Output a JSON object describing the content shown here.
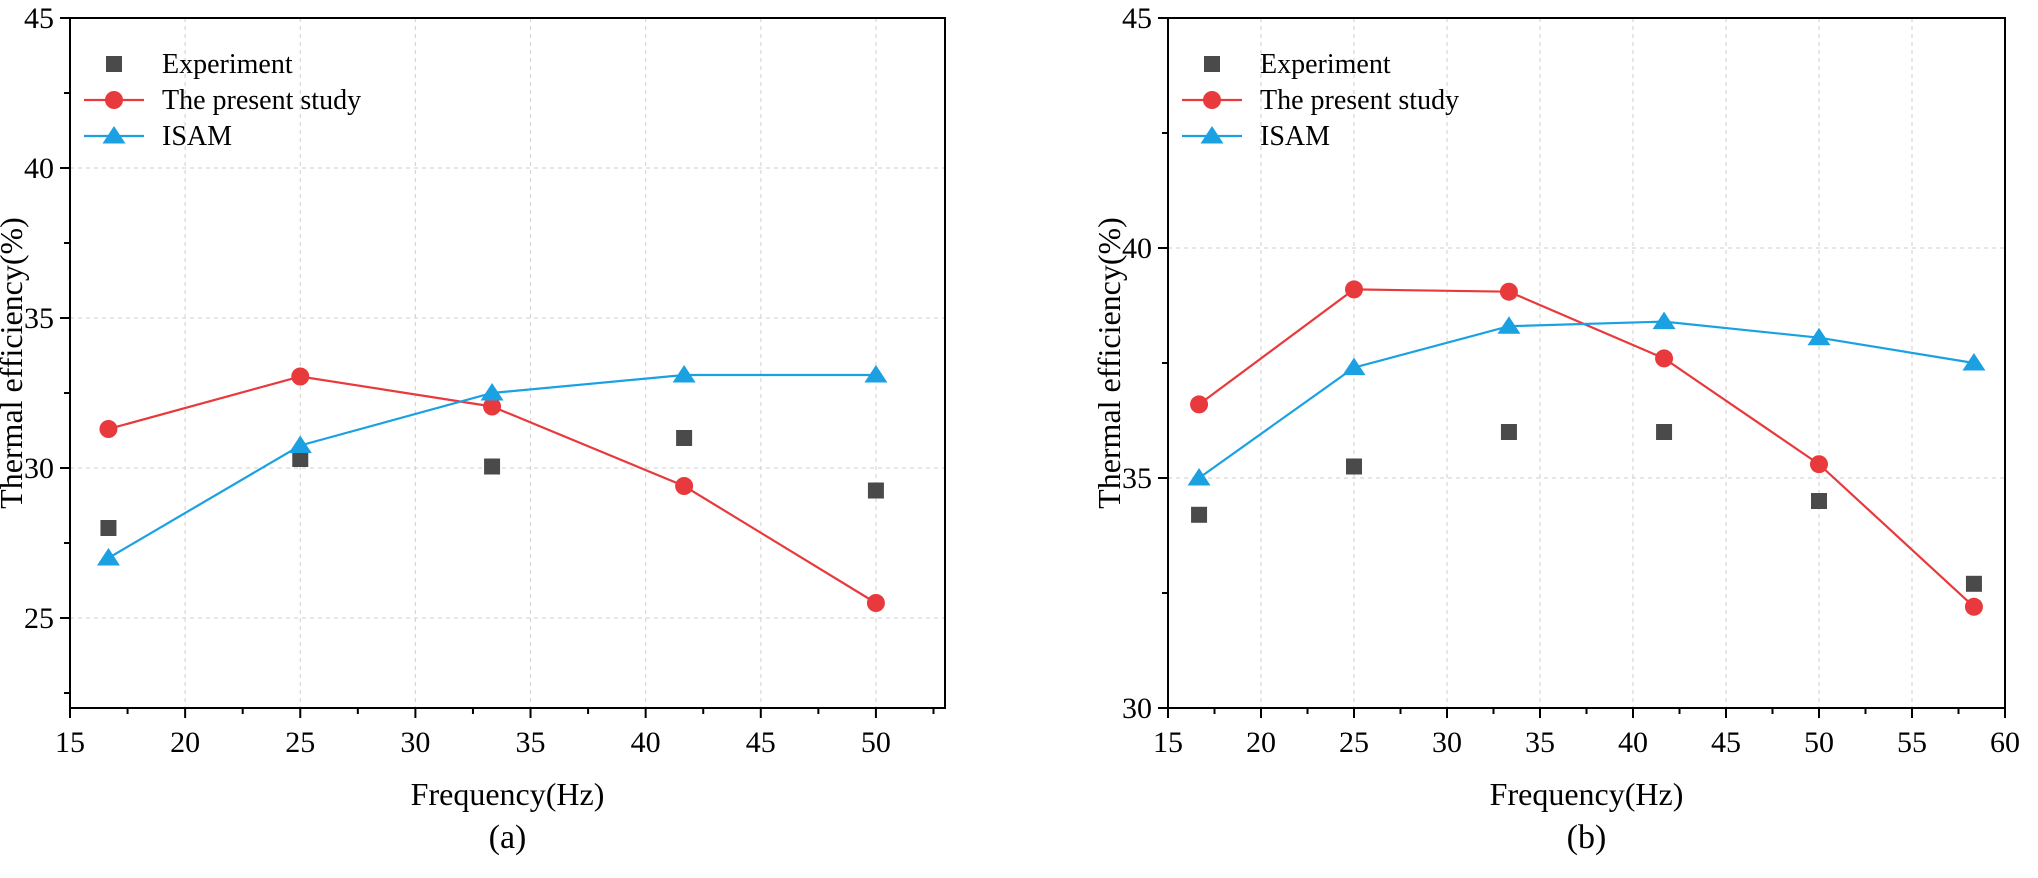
{
  "chart_data": [
    {
      "panel": "(a)",
      "type": "line",
      "title": "",
      "xlabel": "Frequency(Hz)",
      "ylabel": "Thermal efficiency(%)",
      "xlim": [
        15,
        53
      ],
      "ylim": [
        22,
        45
      ],
      "xticks": [
        15,
        20,
        25,
        30,
        35,
        40,
        45,
        50
      ],
      "yticks": [
        25,
        30,
        35,
        40,
        45
      ],
      "grid": true,
      "legend": "top-left",
      "series": [
        {
          "name": "Experiment",
          "style": "scatter-square",
          "color": "#4a4a4a",
          "x": [
            16.67,
            25,
            33.33,
            41.67,
            50
          ],
          "y": [
            28.0,
            30.3,
            30.05,
            31.0,
            29.25
          ]
        },
        {
          "name": "The present study",
          "style": "line-circle",
          "color": "#e8393c",
          "x": [
            16.67,
            25,
            33.33,
            41.67,
            50
          ],
          "y": [
            31.3,
            33.05,
            32.05,
            29.4,
            25.5
          ]
        },
        {
          "name": "ISAM",
          "style": "line-triangle",
          "color": "#1ba1e2",
          "x": [
            16.67,
            25,
            33.33,
            41.67,
            50
          ],
          "y": [
            27.0,
            30.75,
            32.5,
            33.1,
            33.1
          ]
        }
      ]
    },
    {
      "panel": "(b)",
      "type": "line",
      "title": "",
      "xlabel": "Frequency(Hz)",
      "ylabel": "Thermal efficiency(%)",
      "xlim": [
        15,
        60
      ],
      "ylim": [
        30,
        45
      ],
      "xticks": [
        15,
        20,
        25,
        30,
        35,
        40,
        45,
        50,
        55,
        60
      ],
      "yticks": [
        30,
        35,
        40,
        45
      ],
      "grid": true,
      "legend": "top-left",
      "series": [
        {
          "name": "Experiment",
          "style": "scatter-square",
          "color": "#4a4a4a",
          "x": [
            16.67,
            25,
            33.33,
            41.67,
            50,
            58.33
          ],
          "y": [
            34.2,
            35.25,
            36.0,
            36.0,
            34.5,
            32.7
          ]
        },
        {
          "name": "The present study",
          "style": "line-circle",
          "color": "#e8393c",
          "x": [
            16.67,
            25,
            33.33,
            41.67,
            50,
            58.33
          ],
          "y": [
            36.6,
            39.1,
            39.05,
            37.6,
            35.3,
            32.2
          ]
        },
        {
          "name": "ISAM",
          "style": "line-triangle",
          "color": "#1ba1e2",
          "x": [
            16.67,
            25,
            33.33,
            41.67,
            50,
            58.33
          ],
          "y": [
            35.0,
            37.4,
            38.3,
            38.4,
            38.05,
            37.5
          ]
        }
      ]
    }
  ]
}
